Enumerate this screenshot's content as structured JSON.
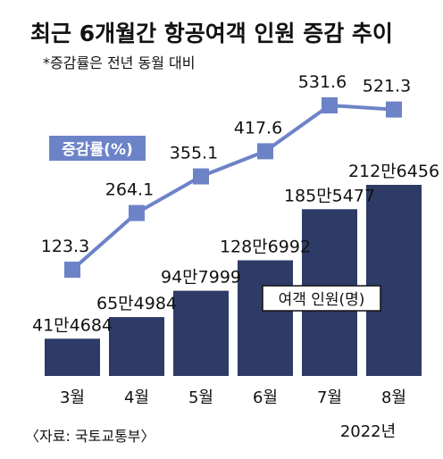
{
  "header": {
    "title": "최근 6개월간 항공여객 인원 증감 추이",
    "subtitle": "*증감률은 전년 동월 대비"
  },
  "legend": {
    "rate_label": "증감률(%)",
    "bar_label": "여객 인원(명)"
  },
  "source": "〈자료: 국토교통부〉",
  "year_label": "2022년",
  "colors": {
    "bar": "#2e3b66",
    "line": "#6d83c7",
    "legend_rate_bg": "#6d83c7",
    "background": "#ffffff"
  },
  "chart_data": {
    "type": "bar",
    "categories": [
      "3월",
      "4월",
      "5월",
      "6월",
      "7월",
      "8월"
    ],
    "series": [
      {
        "type": "bar",
        "name": "여객 인원(명)",
        "values": [
          414684,
          654984,
          947999,
          1286992,
          1855477,
          2126456
        ],
        "labels": [
          "41만4684",
          "65만4984",
          "94만7999",
          "128만6992",
          "185만5477",
          "212만6456"
        ]
      },
      {
        "type": "line",
        "name": "증감률(%)",
        "values": [
          123.3,
          264.1,
          355.1,
          417.6,
          531.6,
          521.3
        ],
        "labels": [
          "123.3",
          "264.1",
          "355.1",
          "417.6",
          "531.6",
          "521.3"
        ]
      }
    ]
  }
}
